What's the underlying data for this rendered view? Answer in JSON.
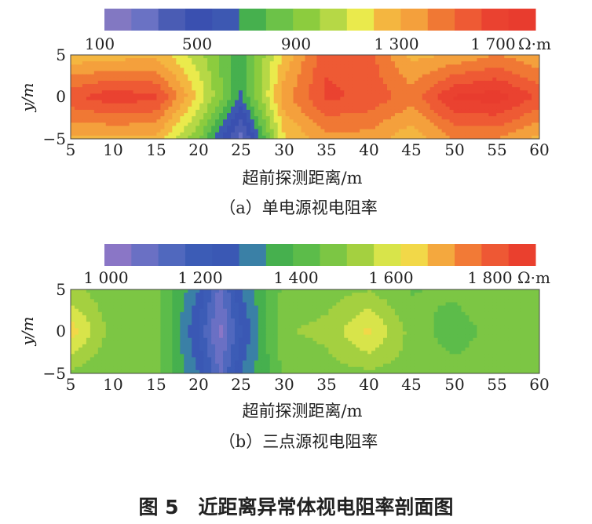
{
  "figure_caption": "图 5　近距离异常体视电阻率剖面图",
  "chart_data": [
    {
      "type": "heatmap",
      "panel_label": "（a）单电源视电阻率",
      "xlabel": "超前探测距离/m",
      "ylabel": "y/m",
      "xlim": [
        5,
        60
      ],
      "ylim": [
        -5,
        5
      ],
      "x_ticks": [
        "5",
        "10",
        "15",
        "20",
        "25",
        "30",
        "35",
        "40",
        "45",
        "50",
        "55",
        "60"
      ],
      "y_ticks": [
        "5",
        "0",
        "−5"
      ],
      "colorbar": {
        "range": [
          100,
          1900
        ],
        "tick_labels": [
          "100",
          "500",
          "900",
          "1 300",
          "1 700"
        ],
        "unit": "Ω·m",
        "colors": [
          "#8278c2",
          "#6a72c4",
          "#4a5cb4",
          "#3a50b0",
          "#3d58b2",
          "#46b04e",
          "#6cc248",
          "#8ccc3e",
          "#b6d846",
          "#eaea4c",
          "#f4b640",
          "#f4a03c",
          "#f07834",
          "#ee5a34",
          "#ea4230",
          "#e83c2e"
        ]
      },
      "field": {
        "x": [
          5,
          10,
          15,
          20,
          25,
          30,
          35,
          40,
          45,
          50,
          55,
          60
        ],
        "y": [
          5,
          0,
          -5
        ],
        "values": [
          [
            1250,
            1280,
            1300,
            1050,
            700,
            1250,
            1650,
            1600,
            1300,
            1350,
            1450,
            1350
          ],
          [
            1650,
            1750,
            1700,
            1200,
            650,
            1400,
            1700,
            1650,
            1500,
            1800,
            1850,
            1650
          ],
          [
            1300,
            1300,
            1300,
            900,
            250,
            1200,
            1400,
            1400,
            1250,
            1450,
            1450,
            1300
          ]
        ]
      }
    },
    {
      "type": "heatmap",
      "panel_label": "（b）三点源视电阻率",
      "xlabel": "超前探测距离/m",
      "ylabel": "y/m",
      "xlim": [
        5,
        60
      ],
      "ylim": [
        -5,
        5
      ],
      "x_ticks": [
        "5",
        "10",
        "15",
        "20",
        "25",
        "30",
        "35",
        "40",
        "45",
        "50",
        "55",
        "60"
      ],
      "y_ticks": [
        "5",
        "0",
        "−5"
      ],
      "colorbar": {
        "range": [
          950,
          1900
        ],
        "tick_labels": [
          "1 000",
          "1 200",
          "1 400",
          "1 600",
          "1 800"
        ],
        "unit": "Ω·m",
        "colors": [
          "#8a76c6",
          "#6a70c4",
          "#5068be",
          "#3c5cb6",
          "#3a58b4",
          "#3a80a6",
          "#46b04e",
          "#5cbc4a",
          "#7cc644",
          "#a4d040",
          "#d8e44a",
          "#f2d848",
          "#f4a83e",
          "#f27a36",
          "#ee5834",
          "#ea402e"
        ]
      },
      "field": {
        "x": [
          5,
          10,
          15,
          20,
          22.5,
          25,
          30,
          35,
          40,
          45,
          50,
          55,
          60
        ],
        "y": [
          5,
          0,
          -5
        ],
        "values": [
          [
            1500,
            1440,
            1450,
            1250,
            1050,
            1250,
            1440,
            1460,
            1480,
            1420,
            1440,
            1480,
            1460
          ],
          [
            1640,
            1450,
            1460,
            1180,
            990,
            1180,
            1480,
            1500,
            1620,
            1460,
            1390,
            1450,
            1470
          ],
          [
            1470,
            1430,
            1440,
            1250,
            1060,
            1250,
            1430,
            1460,
            1470,
            1460,
            1450,
            1470,
            1440
          ]
        ]
      }
    }
  ]
}
